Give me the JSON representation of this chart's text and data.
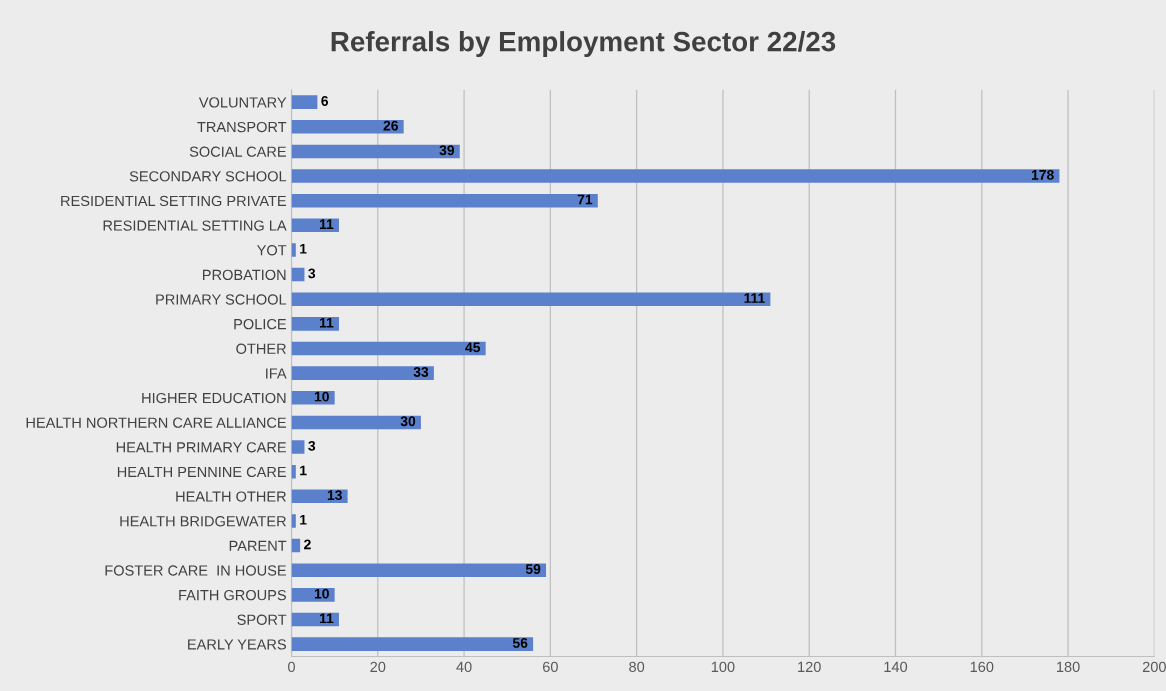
{
  "chart_data": {
    "type": "bar",
    "orientation": "horizontal",
    "title": "Referrals by Employment Sector 22/23",
    "categories": [
      "VOLUNTARY",
      "TRANSPORT",
      "SOCIAL CARE",
      "SECONDARY SCHOOL",
      "RESIDENTIAL SETTING PRIVATE",
      "RESIDENTIAL SETTING LA",
      "YOT",
      "PROBATION",
      "PRIMARY SCHOOL",
      "POLICE",
      "OTHER",
      "IFA",
      "HIGHER EDUCATION",
      "HEALTH NORTHERN CARE ALLIANCE",
      "HEALTH PRIMARY CARE",
      "HEALTH PENNINE CARE",
      "HEALTH OTHER",
      "HEALTH BRIDGEWATER",
      "PARENT",
      "FOSTER CARE  IN HOUSE",
      "FAITH GROUPS",
      "SPORT",
      "EARLY YEARS"
    ],
    "values": [
      6,
      26,
      39,
      178,
      71,
      11,
      1,
      3,
      111,
      11,
      45,
      33,
      10,
      30,
      3,
      1,
      13,
      1,
      2,
      59,
      10,
      11,
      56
    ],
    "color": "#5b80cc",
    "xlim": [
      0,
      200
    ],
    "xticks": [
      0,
      20,
      40,
      60,
      80,
      100,
      120,
      140,
      160,
      180,
      200
    ],
    "grid": "x",
    "data_labels": true
  }
}
